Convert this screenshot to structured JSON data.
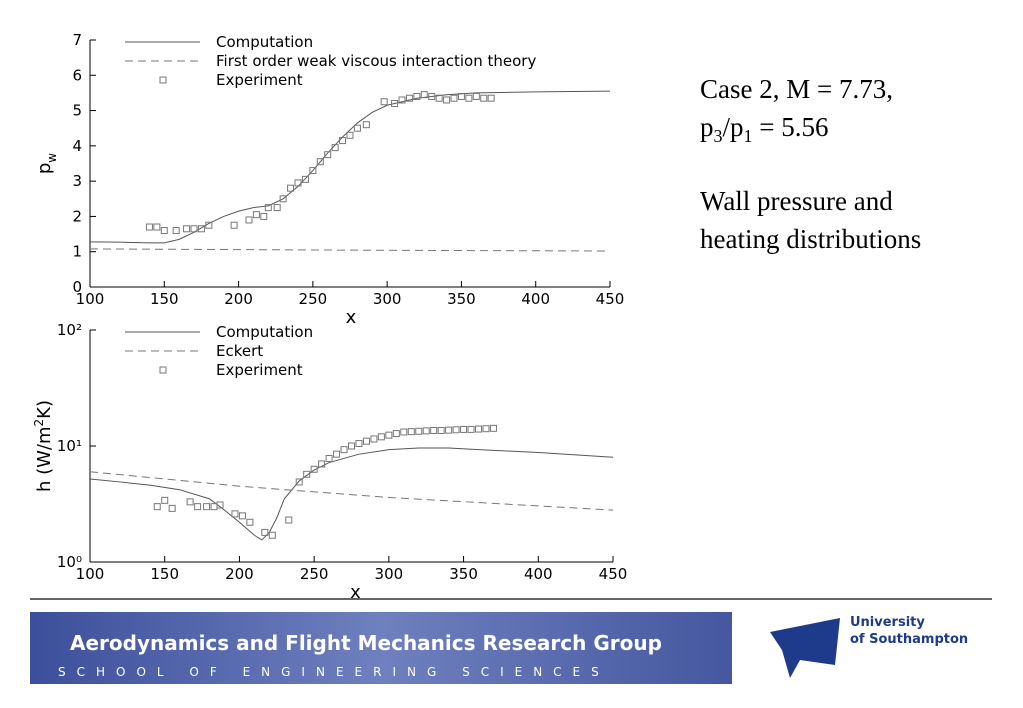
{
  "chart_data": [
    {
      "type": "line",
      "xlabel": "x",
      "ylabel": [
        "p",
        "w"
      ],
      "xlim": [
        100,
        450
      ],
      "xticks": [
        100,
        150,
        200,
        250,
        300,
        350,
        400,
        450
      ],
      "ylim": [
        0,
        7
      ],
      "yticks": [
        0,
        1,
        2,
        3,
        4,
        5,
        6,
        7
      ],
      "log_y": false,
      "legend": "upper left",
      "series": [
        {
          "name": "Computation",
          "color": "#555555",
          "style": "solid",
          "x": [
            100,
            120,
            140,
            150,
            160,
            170,
            180,
            190,
            200,
            210,
            220,
            230,
            240,
            250,
            260,
            270,
            280,
            290,
            300,
            320,
            340,
            360,
            400,
            450
          ],
          "values": [
            1.28,
            1.27,
            1.25,
            1.25,
            1.35,
            1.55,
            1.8,
            2.0,
            2.15,
            2.25,
            2.3,
            2.5,
            2.85,
            3.3,
            3.8,
            4.25,
            4.65,
            4.95,
            5.15,
            5.35,
            5.45,
            5.5,
            5.53,
            5.55
          ]
        },
        {
          "name": "First order weak viscous interaction theory",
          "color": "#777777",
          "style": "dashed",
          "x": [
            100,
            200,
            300,
            450
          ],
          "values": [
            1.08,
            1.06,
            1.04,
            1.02
          ]
        },
        {
          "name": "Experiment",
          "color": "#777777",
          "style": "square",
          "x": [
            140,
            145,
            150,
            158,
            165,
            170,
            175,
            180,
            197,
            207,
            212,
            217,
            220,
            226,
            230,
            235,
            240,
            245,
            250,
            255,
            260,
            265,
            270,
            275,
            280,
            286,
            298,
            305,
            310,
            315,
            320,
            325,
            330,
            335,
            340,
            345,
            350,
            355,
            360,
            365,
            370
          ],
          "values": [
            1.7,
            1.7,
            1.6,
            1.6,
            1.65,
            1.65,
            1.65,
            1.75,
            1.75,
            1.9,
            2.05,
            2.0,
            2.25,
            2.25,
            2.5,
            2.8,
            2.95,
            3.05,
            3.3,
            3.55,
            3.75,
            3.95,
            4.15,
            4.3,
            4.5,
            4.6,
            5.25,
            5.2,
            5.3,
            5.35,
            5.4,
            5.45,
            5.4,
            5.35,
            5.3,
            5.35,
            5.4,
            5.35,
            5.4,
            5.35,
            5.35
          ]
        }
      ]
    },
    {
      "type": "line",
      "xlabel": "x",
      "ylabel": [
        "h (W/m",
        "2",
        "K)"
      ],
      "xlim": [
        100,
        450
      ],
      "xticks": [
        100,
        150,
        200,
        250,
        300,
        350,
        400,
        450
      ],
      "ylim": [
        1,
        100
      ],
      "yticks": [
        {
          "value": 1,
          "label": "10⁰"
        },
        {
          "value": 10,
          "label": "10¹"
        },
        {
          "value": 100,
          "label": "10²"
        }
      ],
      "log_y": true,
      "legend": "upper left",
      "series": [
        {
          "name": "Computation",
          "color": "#555555",
          "style": "solid",
          "x": [
            100,
            120,
            140,
            160,
            180,
            190,
            200,
            210,
            215,
            220,
            225,
            230,
            240,
            250,
            260,
            280,
            300,
            320,
            340,
            360,
            400,
            450
          ],
          "values": [
            5.2,
            4.9,
            4.6,
            4.2,
            3.5,
            2.8,
            2.2,
            1.7,
            1.55,
            1.8,
            2.4,
            3.5,
            5.0,
            6.2,
            7.2,
            8.5,
            9.3,
            9.6,
            9.6,
            9.3,
            8.8,
            8.0
          ]
        },
        {
          "name": "Eckert",
          "color": "#777777",
          "style": "dashed",
          "x": [
            100,
            200,
            300,
            450
          ],
          "values": [
            6.0,
            4.5,
            3.6,
            2.8
          ]
        },
        {
          "name": "Experiment",
          "color": "#777777",
          "style": "square",
          "x": [
            145,
            150,
            155,
            167,
            172,
            178,
            183,
            187,
            197,
            202,
            207,
            217,
            222,
            233,
            240,
            245,
            250,
            255,
            260,
            265,
            270,
            275,
            280,
            285,
            290,
            295,
            300,
            305,
            310,
            315,
            320,
            325,
            330,
            335,
            340,
            345,
            350,
            355,
            360,
            365,
            370
          ],
          "values": [
            3.0,
            3.4,
            2.9,
            3.3,
            3.0,
            3.0,
            3.0,
            3.1,
            2.6,
            2.5,
            2.2,
            1.8,
            1.7,
            2.3,
            4.9,
            5.7,
            6.3,
            7.0,
            7.8,
            8.5,
            9.3,
            10,
            10.5,
            11,
            11.5,
            12,
            12.4,
            12.8,
            13.2,
            13.3,
            13.4,
            13.5,
            13.6,
            13.6,
            13.7,
            13.8,
            13.9,
            13.9,
            14,
            14.1,
            14.2
          ]
        }
      ]
    }
  ],
  "slide": {
    "case": "Case 2, M = 7.73,",
    "ratio": [
      "p",
      "3",
      "/p",
      "1",
      " = 5.56"
    ],
    "caption": [
      "Wall pressure and",
      "heating distributions"
    ],
    "banner_title": "Aerodynamics and Flight Mechanics Research Group",
    "banner_subtitle": "School of Engineering Sciences",
    "logo": [
      "University",
      "of Southampton"
    ]
  }
}
